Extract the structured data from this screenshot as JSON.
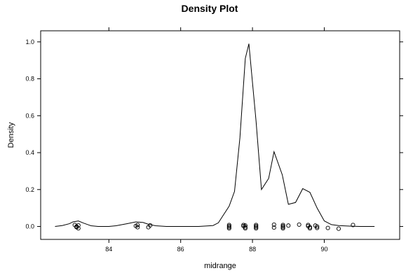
{
  "chart_data": {
    "type": "line",
    "title": "Density Plot",
    "xlabel": "midrange",
    "ylabel": "Density",
    "xlim": [
      82.1,
      92.1
    ],
    "ylim": [
      -0.07,
      1.06
    ],
    "x_ticks": [
      84,
      86,
      88,
      90
    ],
    "x_tick_labels": [
      "84",
      "86",
      "88",
      "90"
    ],
    "y_ticks": [
      0.0,
      0.2,
      0.4,
      0.6,
      0.8,
      1.0
    ],
    "y_tick_labels": [
      "0.0",
      "0.2",
      "0.4",
      "0.6",
      "0.8",
      "1.0"
    ],
    "grid": false,
    "series": [
      {
        "style": "line",
        "x": [
          82.5,
          82.7,
          82.9,
          83.0,
          83.15,
          83.3,
          83.5,
          83.7,
          84.0,
          84.2,
          84.5,
          84.75,
          84.95,
          85.1,
          85.3,
          85.6,
          86.0,
          86.5,
          86.9,
          87.05,
          87.2,
          87.35,
          87.5,
          87.65,
          87.8,
          87.9,
          88.1,
          88.25,
          88.45,
          88.6,
          88.83,
          89.0,
          89.2,
          89.4,
          89.6,
          89.8,
          90.0,
          90.2,
          90.4,
          90.7,
          91.0,
          91.4
        ],
        "y": [
          0.0,
          0.005,
          0.015,
          0.025,
          0.03,
          0.018,
          0.004,
          0.0,
          0.0,
          0.004,
          0.015,
          0.025,
          0.022,
          0.012,
          0.004,
          0.0,
          0.0,
          0.0,
          0.005,
          0.02,
          0.065,
          0.11,
          0.19,
          0.48,
          0.91,
          0.99,
          0.57,
          0.2,
          0.26,
          0.405,
          0.28,
          0.12,
          0.13,
          0.205,
          0.185,
          0.1,
          0.03,
          0.01,
          0.005,
          0.002,
          0.0,
          0.0
        ]
      },
      {
        "style": "points",
        "x": [
          83.05,
          83.1,
          83.1,
          83.15,
          83.15,
          84.75,
          84.8,
          84.8,
          85.1,
          85.15,
          87.35,
          87.35,
          87.35,
          87.35,
          87.75,
          87.75,
          87.8,
          87.8,
          87.8,
          88.1,
          88.1,
          88.1,
          88.1,
          88.6,
          88.6,
          88.85,
          88.85,
          88.85,
          88.85,
          89.0,
          89.3,
          89.55,
          89.55,
          89.6,
          89.6,
          89.75,
          89.8,
          89.8,
          90.1,
          90.4,
          90.8
        ],
        "y": [
          0.008,
          0.0,
          -0.004,
          0.006,
          -0.01,
          0.003,
          -0.004,
          0.008,
          -0.004,
          0.006,
          0.008,
          0.002,
          -0.004,
          -0.01,
          0.008,
          0.002,
          -0.004,
          -0.01,
          0.005,
          0.008,
          0.002,
          -0.004,
          -0.01,
          0.01,
          -0.006,
          0.008,
          0.002,
          -0.004,
          -0.01,
          0.005,
          0.01,
          0.008,
          0.002,
          -0.004,
          -0.01,
          0.005,
          0.0,
          -0.008,
          -0.008,
          -0.012,
          0.008
        ]
      }
    ]
  }
}
